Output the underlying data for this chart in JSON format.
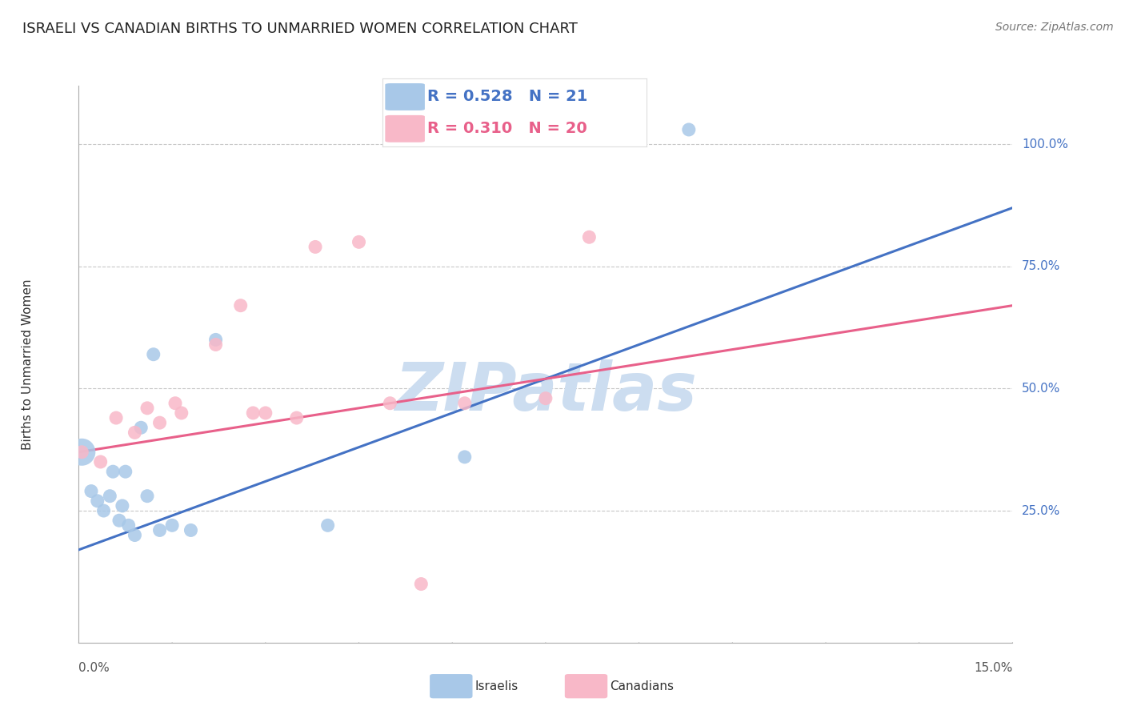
{
  "title": "ISRAELI VS CANADIAN BIRTHS TO UNMARRIED WOMEN CORRELATION CHART",
  "source": "Source: ZipAtlas.com",
  "ylabel": "Births to Unmarried Women",
  "xmin": 0.0,
  "xmax": 15.0,
  "ymin": -2.0,
  "ymax": 112.0,
  "yticks": [
    25.0,
    50.0,
    75.0,
    100.0
  ],
  "ytick_labels": [
    "25.0%",
    "50.0%",
    "75.0%",
    "100.0%"
  ],
  "grid_color": "#c8c8c8",
  "background_color": "#ffffff",
  "watermark": "ZIPatlas",
  "watermark_color": "#ccddf0",
  "israelis_color": "#a8c8e8",
  "canadians_color": "#f8b8c8",
  "line_israeli_color": "#4472c4",
  "line_canadian_color": "#e8608a",
  "israelis_x": [
    0.05,
    0.2,
    0.3,
    0.4,
    0.5,
    0.55,
    0.65,
    0.7,
    0.75,
    0.8,
    0.9,
    1.0,
    1.1,
    1.2,
    1.3,
    1.5,
    1.8,
    2.2,
    4.0,
    6.2,
    9.8
  ],
  "israelis_y": [
    37,
    29,
    27,
    25,
    28,
    33,
    23,
    26,
    33,
    22,
    20,
    42,
    28,
    57,
    21,
    22,
    21,
    60,
    22,
    36,
    103
  ],
  "israelis_size": [
    600,
    150,
    150,
    150,
    150,
    150,
    150,
    150,
    150,
    150,
    150,
    150,
    150,
    150,
    150,
    150,
    150,
    150,
    150,
    150,
    150
  ],
  "canadians_x": [
    0.05,
    0.35,
    0.6,
    0.9,
    1.1,
    1.3,
    1.55,
    1.65,
    2.2,
    2.6,
    2.8,
    3.0,
    3.5,
    3.8,
    4.5,
    5.0,
    6.2,
    7.5,
    8.2,
    5.5
  ],
  "canadians_y": [
    37,
    35,
    44,
    41,
    46,
    43,
    47,
    45,
    59,
    67,
    45,
    45,
    44,
    79,
    80,
    47,
    47,
    48,
    81,
    10
  ],
  "canadians_size": [
    150,
    150,
    150,
    150,
    150,
    150,
    150,
    150,
    150,
    150,
    150,
    150,
    150,
    150,
    150,
    150,
    150,
    150,
    150,
    150
  ],
  "israeli_line": [
    0.0,
    15.0,
    17.0,
    87.0
  ],
  "canadian_line": [
    0.0,
    15.0,
    37.0,
    67.0
  ]
}
